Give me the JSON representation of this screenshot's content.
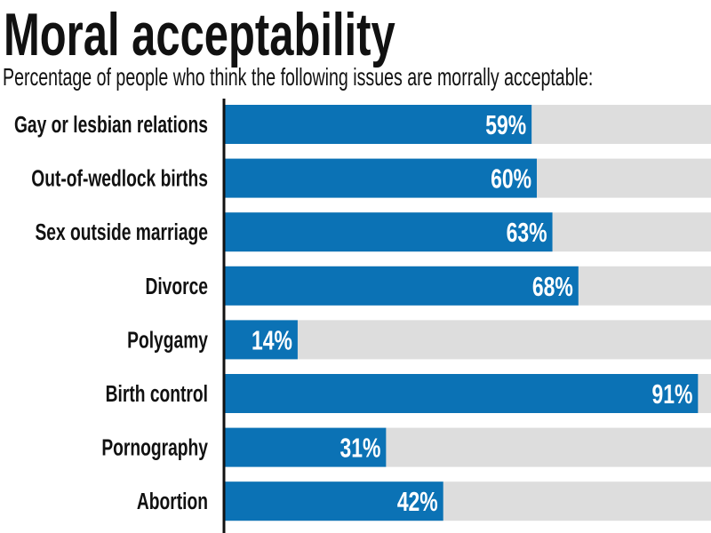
{
  "chart_data": {
    "type": "bar",
    "orientation": "horizontal",
    "title": "Moral acceptability",
    "subtitle": "Percentage of people who think the following issues are morrally acceptable:",
    "categories": [
      "Gay or lesbian relations",
      "Out-of-wedlock births",
      "Sex outside marriage",
      "Divorce",
      "Polygamy",
      "Birth control",
      "Pornography",
      "Abortion"
    ],
    "values": [
      59,
      60,
      63,
      68,
      14,
      91,
      31,
      42
    ],
    "value_labels": [
      "59%",
      "60%",
      "63%",
      "68%",
      "14%",
      "91%",
      "31%",
      "42%"
    ],
    "xlabel": "",
    "ylabel": "",
    "xlim": [
      0,
      100
    ],
    "unit": "%",
    "grid": false,
    "legend": "none",
    "colors": {
      "bar": "#0b72b5",
      "track": "#dddddd",
      "axis": "#111111",
      "value_text": "#ffffff",
      "text": "#111111"
    }
  }
}
